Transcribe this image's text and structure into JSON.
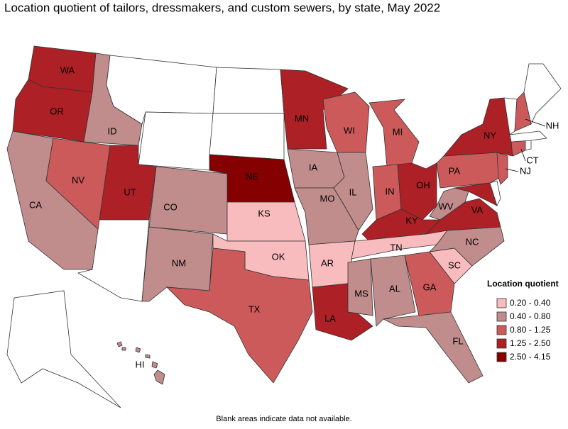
{
  "title": "Location quotient of tailors, dressmakers, and custom sewers, by state, May 2022",
  "legend": {
    "title": "Location quotient",
    "items": [
      {
        "label": "0.20 - 0.40",
        "color": "#f8bcbe"
      },
      {
        "label": "0.40 - 0.80",
        "color": "#c08c8c"
      },
      {
        "label": "0.80 - 1.25",
        "color": "#cd5a5a"
      },
      {
        "label": "1.25 - 2.50",
        "color": "#ad2025"
      },
      {
        "label": "2.50 - 4.15",
        "color": "#850000"
      }
    ]
  },
  "states": [
    {
      "name": "WA",
      "color": "#ad2025"
    },
    {
      "name": "OR",
      "color": "#ad2025"
    },
    {
      "name": "ID",
      "color": "#c08c8c"
    },
    {
      "color": "#ffffff"
    },
    {
      "color": "#ffffff"
    },
    {
      "color": "#ffffff"
    },
    {
      "color": "#ffffff"
    },
    {
      "name": "NE",
      "color": "#850000"
    },
    {
      "name": "CA",
      "color": "#c08c8c"
    },
    {
      "name": "NV",
      "color": "#cd5a5a"
    },
    {
      "name": "UT",
      "color": "#ad2025"
    },
    {
      "color": "#ffffff"
    },
    {
      "name": "CO",
      "color": "#c08c8c"
    },
    {
      "name": "NM",
      "color": "#c08c8c"
    },
    {
      "name": "KS",
      "color": "#f8bcbe"
    },
    {
      "name": "OK",
      "color": "#f8bcbe"
    },
    {
      "name": "TX",
      "color": "#cd5a5a"
    },
    {
      "name": "MN",
      "color": "#ad2025"
    },
    {
      "name": "IA",
      "color": "#c08c8c"
    },
    {
      "name": "MO",
      "color": "#c08c8c"
    },
    {
      "name": "AR",
      "color": "#f8bcbe"
    },
    {
      "name": "LA",
      "color": "#ad2025"
    },
    {
      "name": "WI",
      "color": "#cd5a5a"
    },
    {
      "name": "IL",
      "color": "#c08c8c"
    },
    {
      "name": "MI",
      "color": "#cd5a5a"
    },
    {
      "name": "IN",
      "color": "#cd5a5a"
    },
    {
      "name": "OH",
      "color": "#ad2025"
    },
    {
      "name": "KY",
      "color": "#ad2025"
    },
    {
      "name": "TN",
      "color": "#f8bcbe"
    },
    {
      "name": "MS",
      "color": "#c08c8c"
    },
    {
      "name": "AL",
      "color": "#c08c8c"
    },
    {
      "name": "GA",
      "color": "#cd5a5a"
    },
    {
      "name": "FL",
      "color": "#c08c8c"
    },
    {
      "name": "SC",
      "color": "#f8bcbe"
    },
    {
      "name": "NC",
      "color": "#c08c8c"
    },
    {
      "name": "VA",
      "color": "#ad2025"
    },
    {
      "name": "WV",
      "color": "#c08c8c"
    },
    {
      "color": "#ad2025"
    },
    {
      "color": "#ffffff"
    },
    {
      "name": "PA",
      "color": "#cd5a5a"
    },
    {
      "name": "NJ",
      "color": "#cd5a5a"
    },
    {
      "name": "NY",
      "color": "#ad2025"
    },
    {
      "name": "CT",
      "color": "#cd5a5a"
    },
    {
      "color": "#ffffff"
    },
    {
      "color": "#ffffff"
    },
    {
      "color": "#ffffff"
    },
    {
      "name": "NH",
      "color": "#cd5a5a"
    },
    {
      "color": "#ffffff"
    },
    {
      "color": "#ffffff"
    },
    {
      "name": "HI",
      "color": "#c08c8c"
    }
  ],
  "footnote": "Blank areas indicate data not available."
}
